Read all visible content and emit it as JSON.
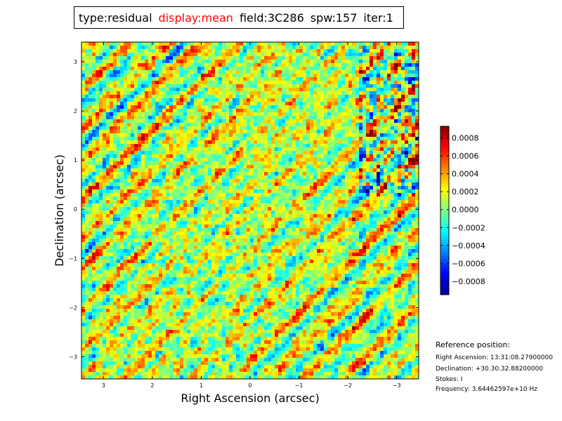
{
  "title_bar": {
    "type": "type:residual",
    "display": "display:mean",
    "field": "field:3C286",
    "spw": "spw:157",
    "iter": "iter:1",
    "accent_color": "#ff0000"
  },
  "chart_data": {
    "type": "heatmap",
    "xlabel": "Right Ascension (arcsec)",
    "ylabel": "Declination (arcsec)",
    "xlim": [
      3.45,
      -3.45
    ],
    "ylim": [
      -3.45,
      3.4
    ],
    "x_ticks": [
      3,
      2,
      1,
      0,
      -1,
      -2,
      -3
    ],
    "x_tick_labels": [
      "3",
      "2",
      "1",
      "0",
      "−1",
      "−2",
      "−3"
    ],
    "y_ticks": [
      3,
      2,
      1,
      0,
      -1,
      -2,
      -3
    ],
    "y_tick_labels": [
      "3",
      "2",
      "1",
      "0",
      "−1",
      "−2",
      "−3"
    ],
    "colormap": "jet",
    "colorbar": {
      "range": [
        -0.00095,
        0.00093
      ],
      "ticks": [
        0.0008,
        0.0006,
        0.0004,
        0.0002,
        0.0,
        -0.0002,
        -0.0004,
        -0.0006,
        -0.0008
      ],
      "tick_labels": [
        "0.0008",
        "0.0006",
        "0.0004",
        "0.0002",
        "0.0000",
        "−0.0002",
        "−0.0004",
        "−0.0006",
        "−0.0008"
      ]
    },
    "pattern": "noise-like residual with diagonal fringe stripes, values mostly near zero (green-yellow)"
  },
  "reference": {
    "title": "Reference position:",
    "lines": [
      "Right Ascension: 13:31:08.27900000",
      "Declination: +30.30.32.88200000",
      "Stokes: I",
      "Frequency: 3.64462597e+10 Hz"
    ]
  }
}
